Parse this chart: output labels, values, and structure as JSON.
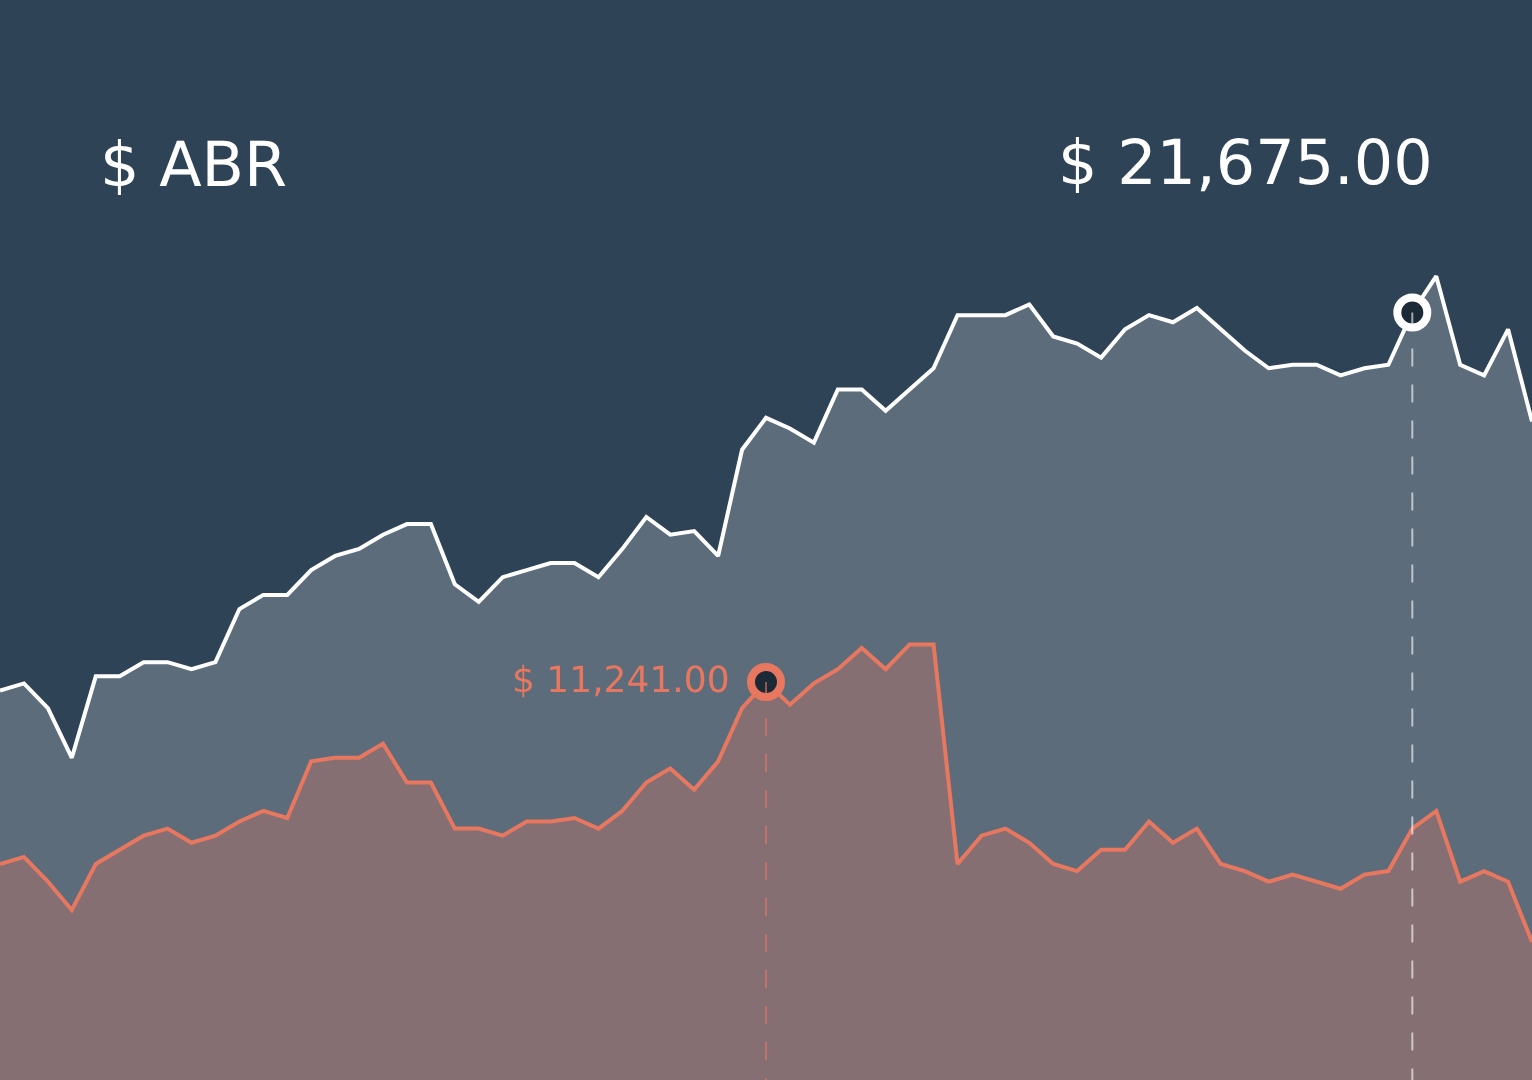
{
  "chart_data": {
    "type": "area",
    "title": "$ ABR",
    "ylim": [
      0,
      30500
    ],
    "categories": [
      null,
      null,
      null,
      null,
      null,
      null,
      null,
      null,
      null,
      null,
      null,
      null,
      null,
      null,
      null,
      null,
      null,
      null,
      null,
      null,
      null,
      null,
      null,
      null,
      null,
      null,
      null,
      null,
      null,
      null,
      null,
      null,
      null,
      null,
      null,
      null,
      null,
      null,
      null,
      null,
      null,
      null,
      null,
      null,
      null,
      null,
      null,
      null,
      null,
      null,
      null,
      null,
      null,
      null,
      null,
      null,
      null,
      null,
      null,
      null,
      null,
      null,
      null,
      null,
      null
    ],
    "series": [
      {
        "color": "#ffffff",
        "values": [
          11000,
          11200,
          10500,
          9100,
          11400,
          11400,
          11800,
          11800,
          11600,
          11800,
          13300,
          13700,
          13700,
          14400,
          14800,
          15000,
          15400,
          15700,
          15700,
          14000,
          13500,
          14200,
          14400,
          14600,
          14600,
          14200,
          15000,
          15900,
          15400,
          15500,
          14800,
          17800,
          18700,
          18400,
          18000,
          19500,
          19500,
          18900,
          19500,
          20100,
          21600,
          21600,
          21600,
          21900,
          21000,
          20800,
          20400,
          21200,
          21600,
          21400,
          21800,
          21200,
          20600,
          20100,
          20200,
          20200,
          19900,
          20100,
          20200,
          21675,
          22700,
          20200,
          19900,
          21200,
          18600
        ],
        "value_labels": [
          null,
          null,
          null,
          null,
          null,
          null,
          null,
          null,
          null,
          null,
          null,
          null,
          null,
          null,
          null,
          null,
          null,
          null,
          null,
          null,
          null,
          null,
          null,
          null,
          null,
          null,
          null,
          null,
          null,
          null,
          null,
          null,
          null,
          null,
          null,
          null,
          null,
          null,
          null,
          null,
          null,
          null,
          null,
          null,
          null,
          null,
          null,
          null,
          null,
          null,
          null,
          null,
          null,
          null,
          null,
          null,
          null,
          null,
          null,
          "$ 21,675.00",
          null,
          null,
          null,
          null,
          null
        ]
      },
      {
        "color": "#e8775f",
        "values": [
          6100,
          6300,
          5600,
          4800,
          6100,
          6500,
          6900,
          7100,
          6700,
          6900,
          7300,
          7600,
          7400,
          9000,
          9100,
          9100,
          9500,
          8400,
          8400,
          7100,
          7100,
          6900,
          7300,
          7300,
          7400,
          7100,
          7600,
          8400,
          8800,
          8200,
          9000,
          10500,
          11241,
          10600,
          11200,
          11600,
          12200,
          11600,
          12300,
          12300,
          6100,
          6900,
          7100,
          6700,
          6100,
          5900,
          6500,
          6500,
          7300,
          6700,
          7100,
          6100,
          5900,
          5600,
          5800,
          5600,
          5400,
          5800,
          5900,
          7100,
          7600,
          5600,
          5900,
          5600,
          3900
        ],
        "value_labels": [
          null,
          null,
          null,
          null,
          null,
          null,
          null,
          null,
          null,
          null,
          null,
          null,
          null,
          null,
          null,
          null,
          null,
          null,
          null,
          null,
          null,
          null,
          null,
          null,
          null,
          null,
          null,
          null,
          null,
          null,
          null,
          null,
          "$ 11,241.00",
          null,
          null,
          null,
          null,
          null,
          null,
          null,
          null,
          null,
          null,
          null,
          null,
          null,
          null,
          null,
          null,
          null,
          null,
          null,
          null,
          null,
          null,
          null,
          null,
          null,
          null,
          null,
          null,
          null,
          null,
          null,
          null
        ]
      }
    ]
  }
}
